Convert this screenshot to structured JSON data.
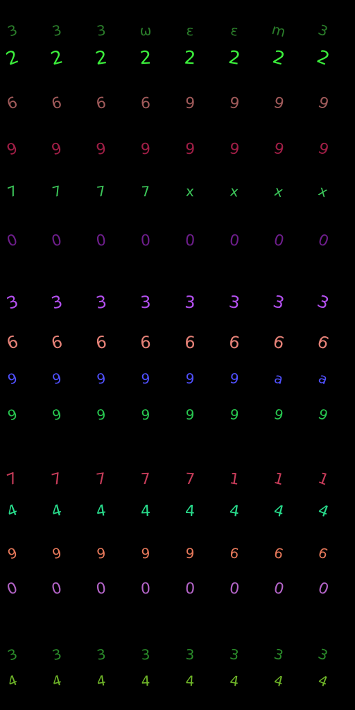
{
  "rows": [
    {
      "digit": "3",
      "color": "#2a7d2a",
      "variants": [
        "3",
        "3",
        "3",
        "ω",
        "ε",
        "ε",
        "m",
        "3"
      ]
    },
    {
      "digit": "2",
      "color": "#3cf03c",
      "variants": [
        "2",
        "2",
        "2",
        "2",
        "2",
        "2",
        "2",
        "2"
      ]
    },
    {
      "digit": "6",
      "color": "#a05a5a",
      "variants": [
        "6",
        "6",
        "6",
        "6",
        "9",
        "9",
        "9",
        "9"
      ]
    },
    {
      "digit": "9",
      "color": "#a01e46",
      "variants": [
        "9",
        "9",
        "9",
        "9",
        "9",
        "9",
        "9",
        "9"
      ]
    },
    {
      "digit": "7",
      "color": "#3cc85a",
      "variants": [
        "7",
        "7",
        "7",
        "7",
        "x",
        "x",
        "x",
        "x"
      ]
    },
    {
      "digit": "0",
      "color": "#6e1e8c",
      "variants": [
        "0",
        "0",
        "0",
        "0",
        "0",
        "0",
        "0",
        "0"
      ]
    },
    {
      "digit": "3",
      "color": "#b450f0",
      "variants": [
        "3",
        "3",
        "3",
        "3",
        "3",
        "3",
        "3",
        "3"
      ]
    },
    {
      "digit": "6",
      "color": "#e68278",
      "variants": [
        "6",
        "6",
        "6",
        "6",
        "6",
        "6",
        "6",
        "6"
      ]
    },
    {
      "digit": "9",
      "color": "#5050ff",
      "variants": [
        "9",
        "9",
        "9",
        "9",
        "9",
        "9",
        "a",
        "a"
      ]
    },
    {
      "digit": "9",
      "color": "#28c850",
      "variants": [
        "9",
        "9",
        "9",
        "9",
        "9",
        "9",
        "9",
        "9"
      ]
    },
    {
      "digit": "7",
      "color": "#c83c5a",
      "variants": [
        "7",
        "7",
        "7",
        "7",
        "7",
        "1",
        "1",
        "1"
      ]
    },
    {
      "digit": "4",
      "color": "#28dc8c",
      "variants": [
        "4",
        "4",
        "4",
        "4",
        "4",
        "4",
        "4",
        "4"
      ]
    },
    {
      "digit": "9",
      "color": "#e6785a",
      "variants": [
        "9",
        "9",
        "9",
        "9",
        "9",
        "6",
        "6",
        "6"
      ]
    },
    {
      "digit": "0",
      "color": "#b464c8",
      "variants": [
        "0",
        "0",
        "0",
        "0",
        "0",
        "0",
        "0",
        "0"
      ]
    },
    {
      "digit": "3",
      "color": "#2a8c2a",
      "variants": [
        "3",
        "3",
        "3",
        "3",
        "3",
        "3",
        "3",
        "3"
      ]
    },
    {
      "digit": "4",
      "color": "#6eb428",
      "variants": [
        "4",
        "4",
        "4",
        "4",
        "4",
        "4",
        "4",
        "4"
      ]
    }
  ]
}
